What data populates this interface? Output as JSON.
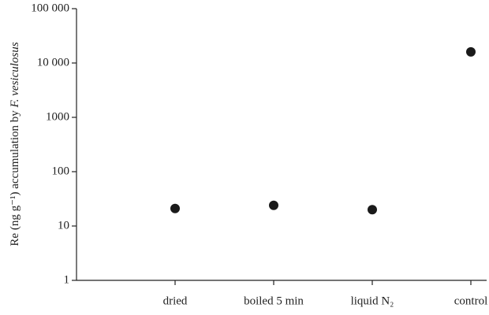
{
  "chart_data": {
    "type": "scatter",
    "ylabel": [
      "Re (ng g⁻¹) accumulation by ",
      "F. vesiculosus"
    ],
    "categories": [
      "dried",
      "boiled 5 min",
      "liquid N₂",
      "control"
    ],
    "values": [
      21,
      24,
      20,
      16000
    ],
    "color": "#1a1a1a",
    "log_scale": true,
    "ylim": [
      1,
      100000
    ],
    "yticks": [
      1,
      10,
      100,
      1000,
      {
        "value": 10000,
        "label": "10 000"
      },
      {
        "value": 100000,
        "label": "100 000"
      }
    ]
  }
}
